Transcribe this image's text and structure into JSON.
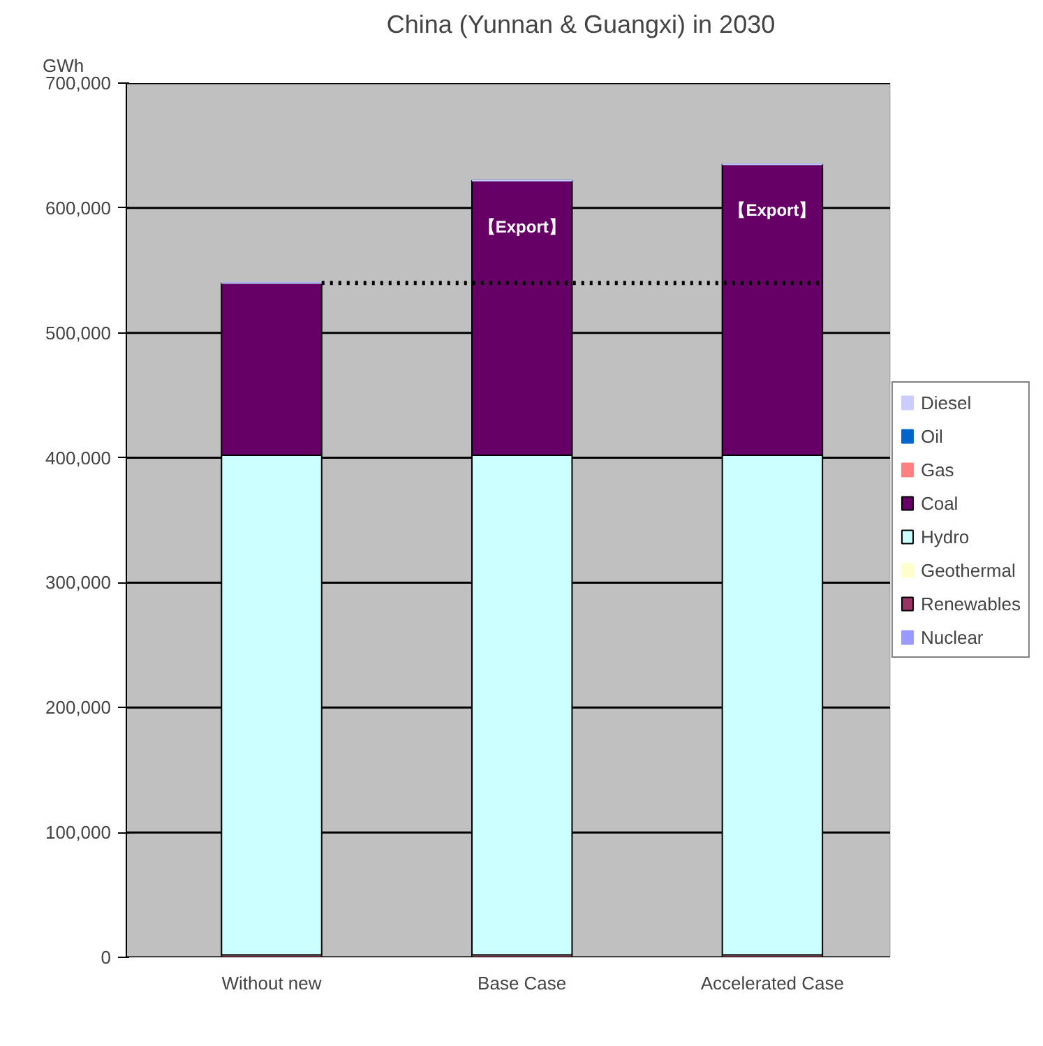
{
  "chart_data": {
    "type": "bar",
    "title": "China (Yunnan & Guangxi) in 2030",
    "ylabel": "GWh",
    "categories": [
      "Without new",
      "Base Case",
      "Accelerated Case"
    ],
    "stacked": true,
    "series": [
      {
        "name": "Nuclear",
        "color": "#9999ff",
        "values": [
          0,
          0,
          0
        ]
      },
      {
        "name": "Renewables",
        "color": "#993366",
        "values": [
          2000,
          2000,
          2000
        ]
      },
      {
        "name": "Geothermal",
        "color": "#ffffcc",
        "values": [
          0,
          0,
          0
        ]
      },
      {
        "name": "Hydro",
        "color": "#ccffff",
        "values": [
          400000,
          400000,
          400000
        ]
      },
      {
        "name": "Coal",
        "color": "#660066",
        "values": [
          138000,
          220000,
          233000
        ]
      },
      {
        "name": "Gas",
        "color": "#ff8080",
        "values": [
          0,
          0,
          0
        ]
      },
      {
        "name": "Oil",
        "color": "#0066cc",
        "values": [
          0,
          0,
          0
        ]
      },
      {
        "name": "Diesel",
        "color": "#ccccff",
        "values": [
          0,
          0,
          0
        ]
      }
    ],
    "ylim": [
      0,
      700000
    ],
    "yticks": [
      0,
      {
        "value": 100000,
        "label": "100,000"
      },
      {
        "value": 200000,
        "label": "200,000"
      },
      {
        "value": 300000,
        "label": "300,000"
      },
      {
        "value": 400000,
        "label": "400,000"
      },
      {
        "value": 500000,
        "label": "500,000"
      },
      {
        "value": 600000,
        "label": "600,000"
      },
      {
        "value": 700000,
        "label": "700,000"
      }
    ],
    "grid": "y",
    "legend": "right",
    "ref_lines": [
      {
        "axis": "y",
        "value": 540000,
        "label": null,
        "color": "#000000",
        "line_style": "dotted"
      }
    ],
    "annotations": [
      {
        "text": "【Export】",
        "x": "Base Case",
        "y": 622000
      },
      {
        "text": "【Export】",
        "x": "Accelerated Case",
        "y": 635000
      }
    ]
  }
}
